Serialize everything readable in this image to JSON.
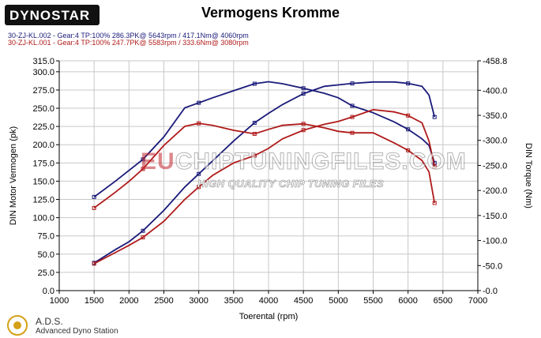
{
  "logo": {
    "text": "DYNOSTAR"
  },
  "header": {
    "title": "Vermogens Kromme",
    "runs": [
      "30-ZJ-KL.002 - Gear:4 TP:100%     286.3PK@ 5643rpm / 417.1Nm@ 4060rpm",
      "30-ZJ-KL.001 - Gear:4 TP:100%     247.7PK@ 5583rpm / 333.6Nm@ 3080rpm"
    ]
  },
  "footer": {
    "brand": "A.D.S.",
    "subtitle": "Advanced Dyno Station"
  },
  "watermark": {
    "main_eu": "EU",
    "main_rest": "CHIPTUNINGFILES.COM",
    "sub": "HIGH QUALITY CHIP TUNING FILES"
  },
  "colors": {
    "blue": "#1a1a7a",
    "red": "#b01a1a",
    "grid": "#c8c8c8"
  },
  "chart_data": {
    "type": "line",
    "xlabel": "Toerental (rpm)",
    "ylabel": "DIN Motor Vermogen (pk)",
    "y2label": "DIN Torque (Nm)",
    "xlim": [
      1000,
      7000
    ],
    "ylim": [
      0,
      315
    ],
    "y2lim": [
      0,
      458.8
    ],
    "xticks": [
      "1000",
      "1500",
      "2000",
      "2500",
      "3000",
      "3500",
      "4000",
      "4500",
      "5000",
      "5500",
      "6000",
      "6500",
      "7000"
    ],
    "yticks": [
      "0.0",
      "25.0",
      "50.0",
      "75.0",
      "100.0",
      "125.0",
      "150.0",
      "175.0",
      "200.0",
      "225.0",
      "250.0",
      "275.0",
      "300.0",
      "315.0"
    ],
    "y2ticks": [
      "-0.0",
      "-50.0",
      "-100.0",
      "-150.0",
      "-200.0",
      "-250.0",
      "-300.0",
      "-350.0",
      "-400.0",
      "-458.8"
    ],
    "y2tick_values": [
      0,
      50,
      100,
      150,
      200,
      250,
      300,
      350,
      400,
      458.8
    ],
    "x": [
      1500,
      1800,
      2000,
      2200,
      2500,
      2800,
      3000,
      3200,
      3500,
      3800,
      4000,
      4200,
      4500,
      4800,
      5000,
      5200,
      5500,
      5800,
      6000,
      6200,
      6300,
      6380
    ],
    "series": [
      {
        "axis": "left",
        "color": "blue",
        "values": [
          38,
          56,
          67,
          82,
          110,
          142,
          160,
          178,
          205,
          230,
          243,
          255,
          270,
          280,
          282,
          284,
          286,
          286,
          284,
          280,
          268,
          238
        ]
      },
      {
        "axis": "right",
        "color": "blue",
        "values": [
          187,
          218,
          240,
          262,
          307,
          365,
          375,
          385,
          399,
          413,
          417,
          413,
          404,
          394,
          385,
          369,
          355,
          337,
          322,
          303,
          290,
          255
        ]
      },
      {
        "axis": "left",
        "color": "red",
        "values": [
          37,
          52,
          62,
          73,
          95,
          125,
          142,
          158,
          175,
          185,
          195,
          208,
          220,
          228,
          232,
          238,
          248,
          245,
          240,
          230,
          205,
          170
        ]
      },
      {
        "axis": "right",
        "color": "red",
        "values": [
          165,
          196,
          218,
          243,
          290,
          328,
          334,
          330,
          320,
          313,
          322,
          330,
          333,
          325,
          318,
          315,
          315,
          295,
          280,
          260,
          237,
          175
        ]
      }
    ]
  }
}
